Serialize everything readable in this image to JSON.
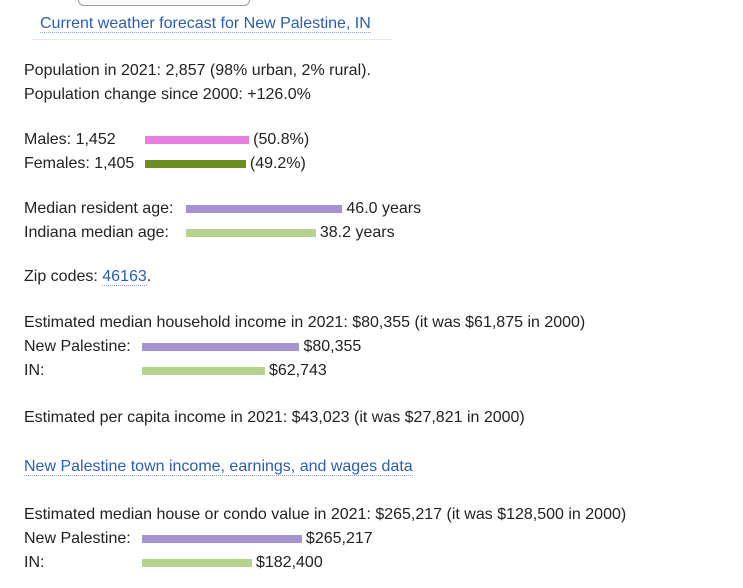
{
  "forecast_link": "Current weather forecast for New Palestine, IN",
  "population": {
    "line1": "Population in 2021: 2,857 (98% urban, 2% rural).",
    "line2": "Population change since 2000: +126.0%"
  },
  "gender": {
    "males_label": "Males: 1,452",
    "males_value": "(50.8%)",
    "males_fraction": 0.508,
    "females_label": "Females: 1,405",
    "females_value": "(49.2%)",
    "females_fraction": 0.492
  },
  "age": {
    "resident_label": "Median resident age:",
    "resident_value": "46.0 years",
    "resident_years": 46.0,
    "state_label": "Indiana median age:",
    "state_value": "38.2 years",
    "state_years": 38.2
  },
  "zip": {
    "label": "Zip codes:",
    "code": "46163",
    "suffix": "."
  },
  "household_income": {
    "heading": "Estimated median household income in 2021: $80,355 (it was $61,875 in 2000)",
    "town_label": "New Palestine:",
    "town_value": "$80,355",
    "town_amount": 80355,
    "state_label": "IN:",
    "state_value": "$62,743",
    "state_amount": 62743
  },
  "per_capita": {
    "text": "Estimated per capita income in 2021: $43,023 (it was $27,821 in 2000)"
  },
  "income_link": "New Palestine town income, earnings, and wages data",
  "house_value": {
    "heading": "Estimated median house or condo value in 2021: $265,217 (it was $128,500 in 2000)",
    "town_label": "New Palestine:",
    "town_value": "$265,217",
    "town_amount": 265217,
    "state_label": "IN:",
    "state_value": "$182,400",
    "state_amount": 182400
  },
  "colors": {
    "male": "#e77fe0",
    "female": "#6b8e23",
    "town": "#a992d2",
    "state": "#b5d38f",
    "link": "#2a5db0"
  }
}
